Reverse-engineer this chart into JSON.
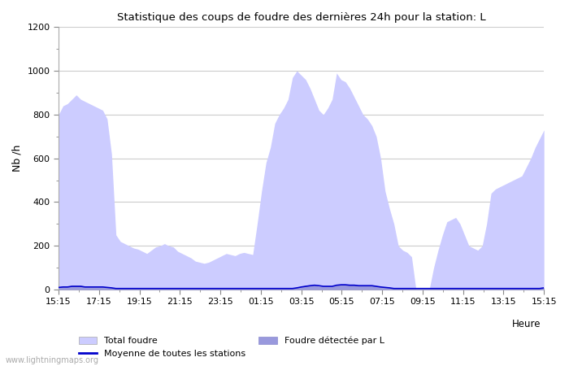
{
  "title": "Statistique des coups de foudre des dernières 24h pour la station: L",
  "xlabel": "Heure",
  "ylabel": "Nb /h",
  "ylim": [
    0,
    1200
  ],
  "yticks": [
    0,
    200,
    400,
    600,
    800,
    1000,
    1200
  ],
  "x_labels": [
    "15:15",
    "17:15",
    "19:15",
    "21:15",
    "23:15",
    "01:15",
    "03:15",
    "05:15",
    "07:15",
    "09:15",
    "11:15",
    "13:15",
    "15:15"
  ],
  "total_foudre_color": "#ccccff",
  "foudre_detectee_color": "#9999dd",
  "moyenne_color": "#0000cc",
  "background_color": "#ffffff",
  "grid_color": "#cccccc",
  "watermark": "www.lightningmaps.org",
  "total_foudre": [
    800,
    840,
    850,
    870,
    890,
    870,
    860,
    850,
    840,
    830,
    820,
    780,
    620,
    250,
    220,
    210,
    200,
    190,
    185,
    175,
    165,
    180,
    195,
    200,
    210,
    200,
    195,
    175,
    165,
    155,
    145,
    130,
    125,
    120,
    125,
    135,
    145,
    155,
    165,
    160,
    155,
    165,
    170,
    165,
    160,
    300,
    450,
    580,
    650,
    760,
    800,
    830,
    870,
    970,
    1000,
    980,
    960,
    920,
    870,
    820,
    800,
    830,
    870,
    990,
    960,
    950,
    920,
    880,
    840,
    800,
    780,
    750,
    700,
    600,
    450,
    370,
    300,
    200,
    180,
    170,
    150,
    0,
    0,
    0,
    0,
    100,
    180,
    250,
    310,
    320,
    330,
    300,
    250,
    200,
    190,
    180,
    200,
    300,
    440,
    460,
    470,
    480,
    490,
    500,
    510,
    520,
    560,
    600,
    650,
    690,
    730
  ],
  "foudre_detectee": [
    10,
    15,
    15,
    20,
    20,
    20,
    15,
    15,
    15,
    15,
    15,
    10,
    10,
    5,
    5,
    5,
    5,
    5,
    5,
    5,
    5,
    5,
    5,
    5,
    5,
    5,
    5,
    5,
    5,
    5,
    5,
    5,
    5,
    5,
    5,
    5,
    5,
    5,
    5,
    5,
    5,
    5,
    5,
    5,
    5,
    5,
    5,
    5,
    5,
    5,
    5,
    5,
    5,
    5,
    10,
    15,
    20,
    20,
    20,
    15,
    15,
    15,
    15,
    20,
    25,
    25,
    25,
    25,
    20,
    20,
    20,
    20,
    15,
    15,
    10,
    10,
    5,
    5,
    5,
    5,
    5,
    5,
    5,
    5,
    5,
    5,
    5,
    5,
    5,
    5,
    5,
    5,
    5,
    5,
    5,
    5,
    5,
    5,
    5,
    5,
    5,
    5,
    5,
    5,
    5,
    5,
    5,
    5,
    5,
    5,
    10
  ],
  "moyenne": [
    10,
    12,
    12,
    15,
    15,
    15,
    12,
    12,
    12,
    12,
    12,
    10,
    8,
    5,
    5,
    5,
    5,
    5,
    5,
    5,
    5,
    5,
    5,
    5,
    5,
    5,
    5,
    5,
    5,
    5,
    5,
    5,
    5,
    5,
    5,
    5,
    5,
    5,
    5,
    5,
    5,
    5,
    5,
    5,
    5,
    5,
    5,
    5,
    5,
    5,
    5,
    5,
    5,
    5,
    8,
    12,
    15,
    18,
    20,
    18,
    15,
    15,
    15,
    20,
    22,
    22,
    20,
    20,
    18,
    18,
    18,
    18,
    15,
    12,
    10,
    8,
    5,
    5,
    5,
    5,
    5,
    5,
    5,
    5,
    5,
    5,
    5,
    5,
    5,
    5,
    5,
    5,
    5,
    5,
    5,
    5,
    5,
    5,
    5,
    5,
    5,
    5,
    5,
    5,
    5,
    5,
    5,
    5,
    5,
    5,
    8
  ]
}
